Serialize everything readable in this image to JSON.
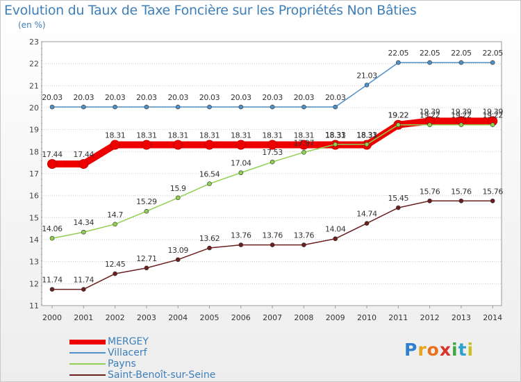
{
  "title": "Evolution du Taux de Taxe Foncière sur les Propriétés Non Bâties",
  "unit_label": "(en %)",
  "logo": {
    "letters": [
      "P",
      "r",
      "o",
      "x",
      "i",
      "t",
      "i"
    ],
    "colors": [
      "#2f7fd0",
      "#e8a21c",
      "#e8731c",
      "#d8322c",
      "#3fa83f",
      "#2f9fd0",
      "#c8c020"
    ]
  },
  "chart_data": {
    "type": "line",
    "x": [
      "2000",
      "2001",
      "2002",
      "2003",
      "2004",
      "2005",
      "2006",
      "2007",
      "2008",
      "2009",
      "2010",
      "2011",
      "2012",
      "2013",
      "2014"
    ],
    "yticks": [
      11,
      12,
      13,
      14,
      15,
      16,
      17,
      18,
      19,
      20,
      21,
      22,
      23
    ],
    "ylim": [
      11,
      23
    ],
    "grid": "horizontal dotted",
    "legend_position": "bottom-left",
    "series": [
      {
        "name": "MERGEY",
        "color": "#ee0000",
        "style": "thick",
        "values": [
          17.44,
          17.44,
          18.31,
          18.31,
          18.31,
          18.31,
          18.31,
          18.31,
          18.31,
          18.31,
          18.31,
          19.22,
          19.39,
          19.39,
          19.39
        ],
        "labels": [
          "17.44",
          "17.44",
          "18.31",
          "18.31",
          "18.31",
          "18.31",
          "18.31",
          "18.31",
          "18.31",
          "18.31",
          "18.31",
          "19.22",
          "19.39",
          "19.39",
          "19.39"
        ]
      },
      {
        "name": "Villacerf",
        "color": "#4f90c8",
        "style": "thin",
        "values": [
          20.03,
          20.03,
          20.03,
          20.03,
          20.03,
          20.03,
          20.03,
          20.03,
          20.03,
          20.03,
          21.03,
          22.05,
          22.05,
          22.05,
          22.05
        ],
        "labels": [
          "20.03",
          "20.03",
          "20.03",
          "20.03",
          "20.03",
          "20.03",
          "20.03",
          "20.03",
          "20.03",
          "20.03",
          "21.03",
          "22.05",
          "22.05",
          "22.05",
          "22.05"
        ]
      },
      {
        "name": "Payns",
        "color": "#90d050",
        "style": "thin",
        "values": [
          14.06,
          14.34,
          14.7,
          15.29,
          15.9,
          16.54,
          17.04,
          17.53,
          17.97,
          18.33,
          18.33,
          19.22,
          19.22,
          19.22,
          19.22
        ],
        "labels": [
          "14.06",
          "14.34",
          "14.7",
          "15.29",
          "15.9",
          "16.54",
          "17.04",
          "17.53",
          "17.97",
          "18.33",
          "18.33",
          "19.22",
          "19.22",
          "19.22",
          "19.22"
        ]
      },
      {
        "name": "Saint-Benoît-sur-Seine",
        "color": "#6b1f1f",
        "style": "thin",
        "values": [
          11.74,
          11.74,
          12.45,
          12.71,
          13.09,
          13.62,
          13.76,
          13.76,
          13.76,
          14.04,
          14.74,
          15.45,
          15.76,
          15.76,
          15.76
        ],
        "labels": [
          "11.74",
          "11.74",
          "12.45",
          "12.71",
          "13.09",
          "13.62",
          "13.76",
          "13.76",
          "13.76",
          "14.04",
          "14.74",
          "15.45",
          "15.76",
          "15.76",
          "15.76"
        ]
      }
    ]
  }
}
